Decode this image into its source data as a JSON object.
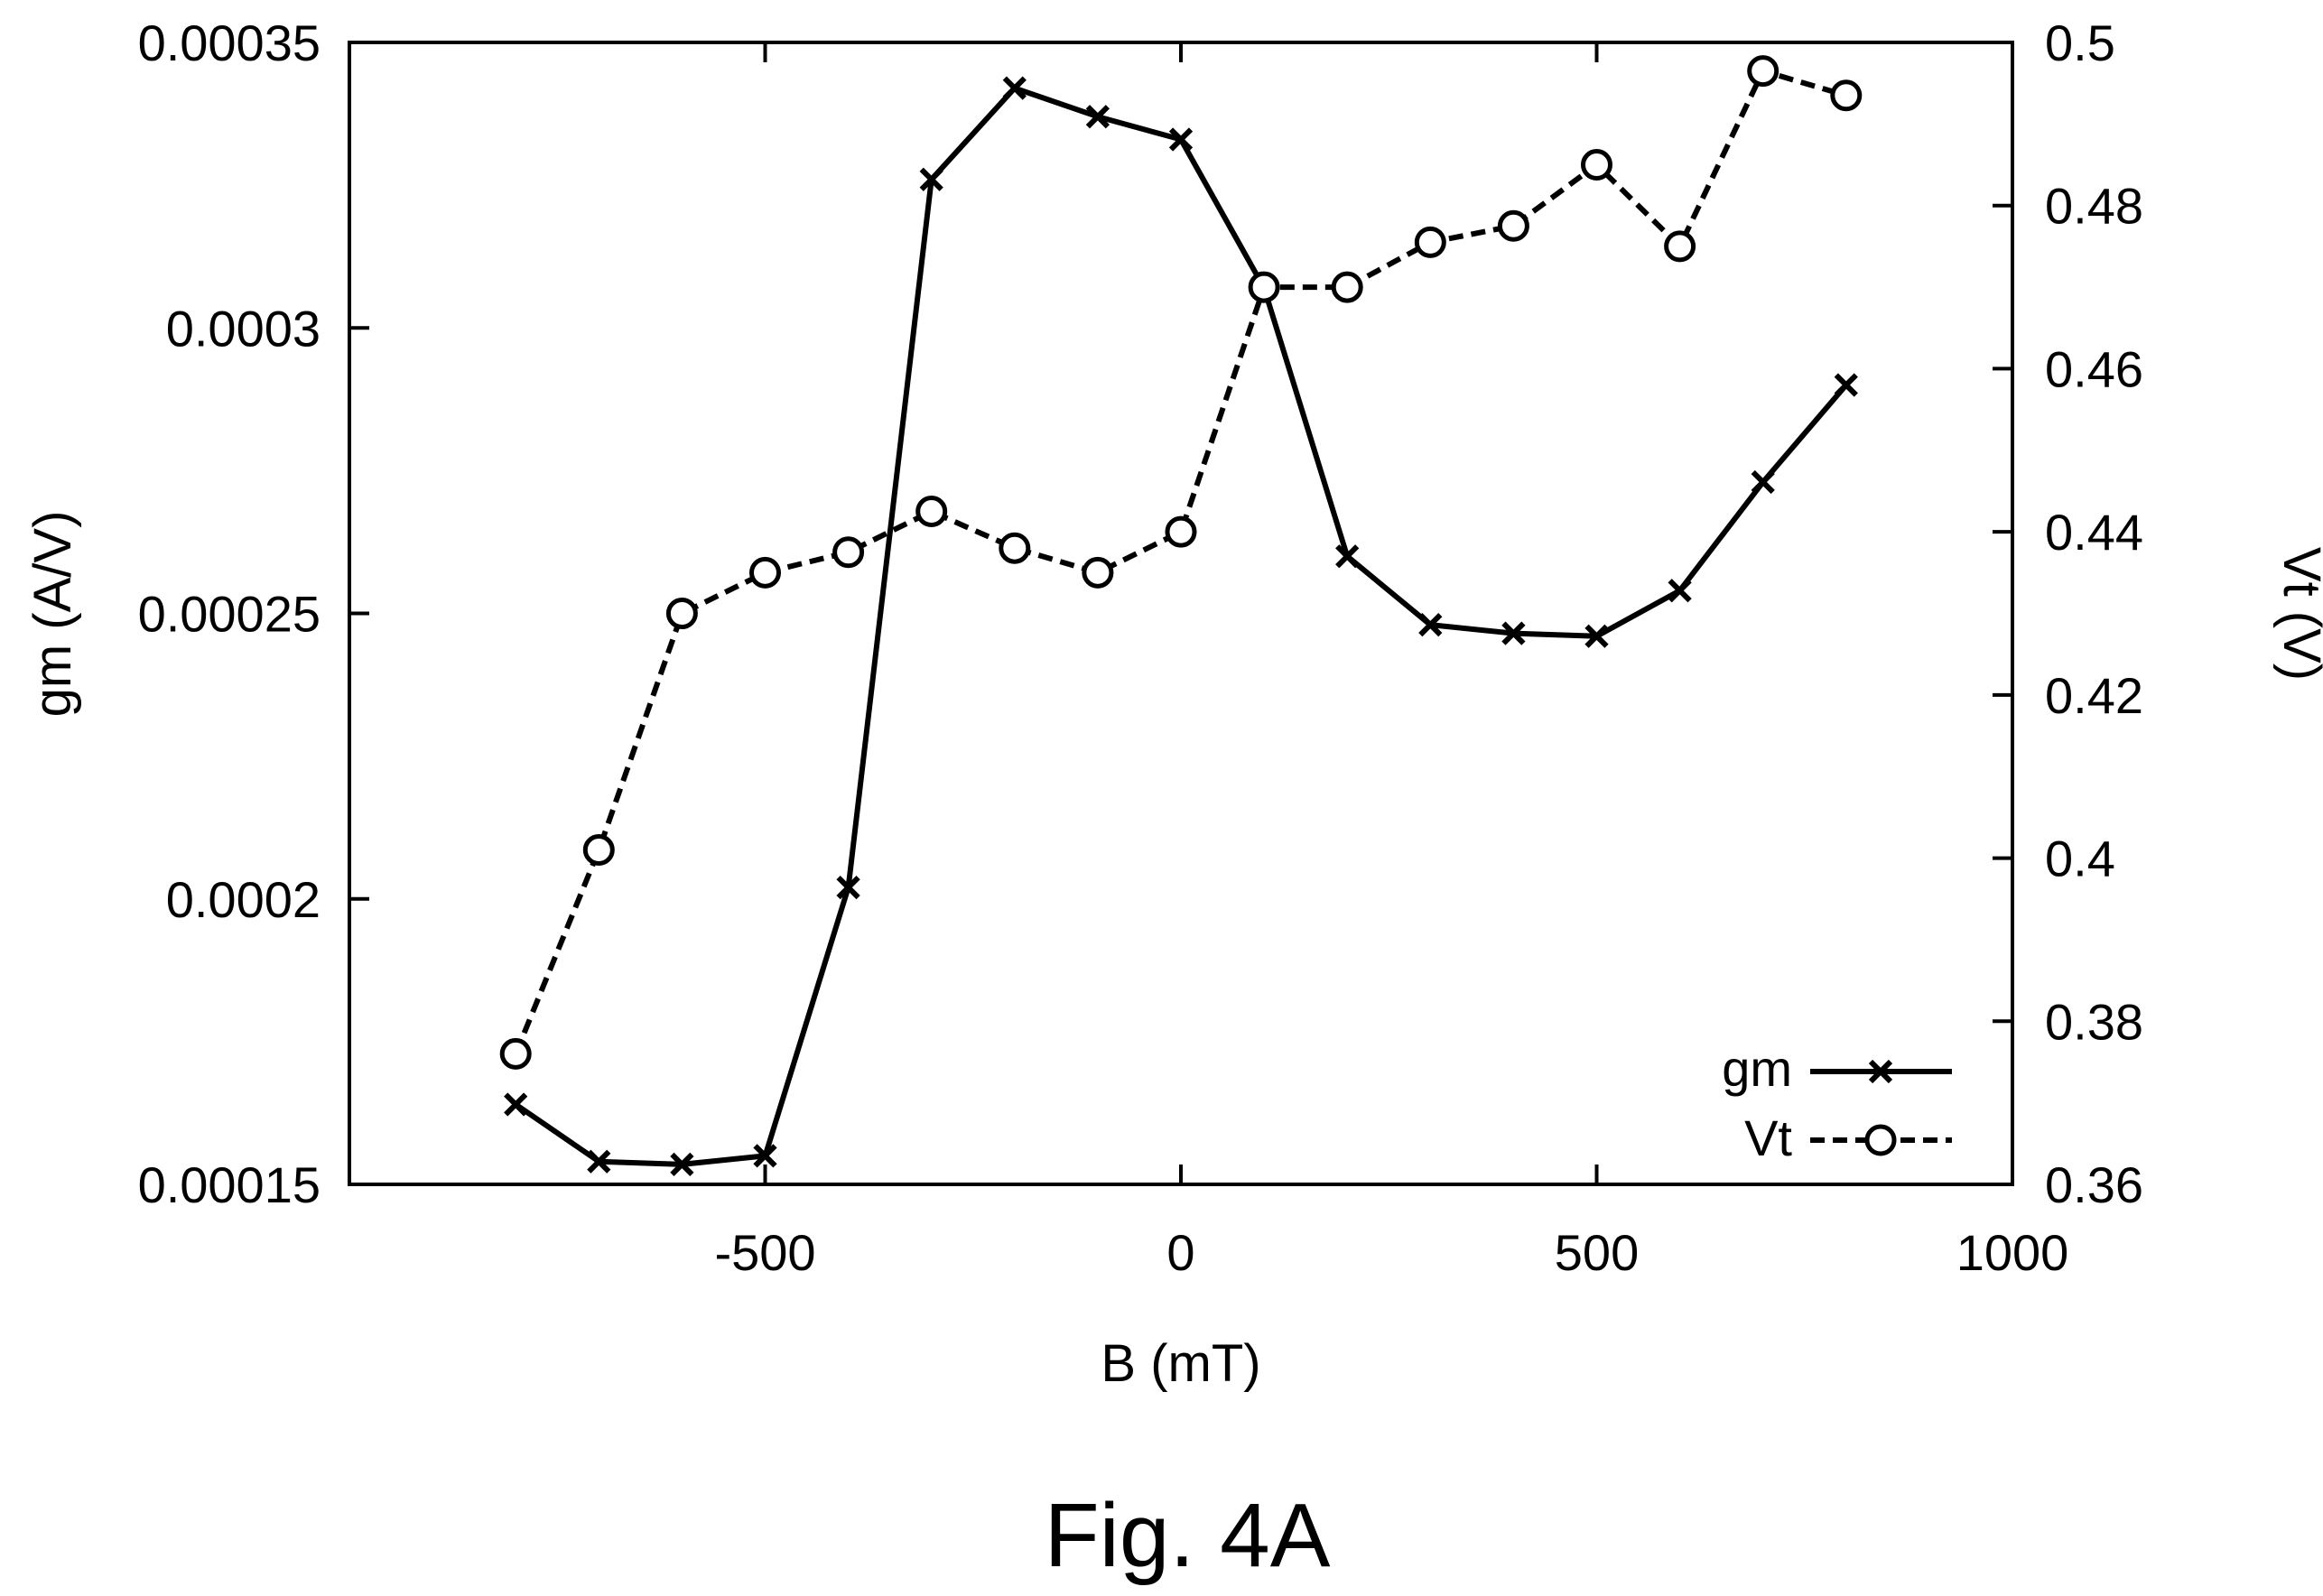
{
  "chart_data": {
    "type": "line",
    "xlabel": "B (mT)",
    "ylabel_left": "gm (A/V)",
    "ylabel_right": "Vt (V)",
    "xlim": [
      -1000,
      1000
    ],
    "ylim_left": [
      0.00015,
      0.00035
    ],
    "ylim_right": [
      0.36,
      0.5
    ],
    "x_ticks": [
      "-500",
      "0",
      "500",
      "1000"
    ],
    "x_tick_values": [
      -500,
      0,
      500,
      1000
    ],
    "y_ticks_left": [
      "0.00015",
      "0.0002",
      "0.00025",
      "0.0003",
      "0.00035"
    ],
    "y_tick_values_left": [
      0.00015,
      0.0002,
      0.00025,
      0.0003,
      0.00035
    ],
    "y_ticks_right": [
      "0.36",
      "0.38",
      "0.4",
      "0.42",
      "0.44",
      "0.46",
      "0.48",
      "0.5"
    ],
    "y_tick_values_right": [
      0.36,
      0.38,
      0.4,
      0.42,
      0.44,
      0.46,
      0.48,
      0.5
    ],
    "grid": false,
    "legend_position": "bottom-right",
    "x": [
      -800,
      -700,
      -600,
      -500,
      -400,
      -300,
      -200,
      -100,
      0,
      100,
      200,
      300,
      400,
      500,
      600,
      700,
      800
    ],
    "series": [
      {
        "name": "gm",
        "axis": "left",
        "marker": "x",
        "line": "solid",
        "values": [
          0.000164,
          0.000154,
          0.0001535,
          0.000155,
          0.000202,
          0.000326,
          0.000342,
          0.000337,
          0.000333,
          0.000307,
          0.00026,
          0.000248,
          0.0002465,
          0.000246,
          0.000254,
          0.000273,
          0.00029
        ]
      },
      {
        "name": "Vt",
        "axis": "right",
        "marker": "circle",
        "line": "dashed",
        "values": [
          0.376,
          0.401,
          0.43,
          0.435,
          0.4375,
          0.4425,
          0.438,
          0.435,
          0.44,
          0.47,
          0.47,
          0.4755,
          0.4775,
          0.485,
          0.475,
          0.4965,
          0.4935
        ]
      }
    ]
  },
  "caption": "Fig. 4A"
}
